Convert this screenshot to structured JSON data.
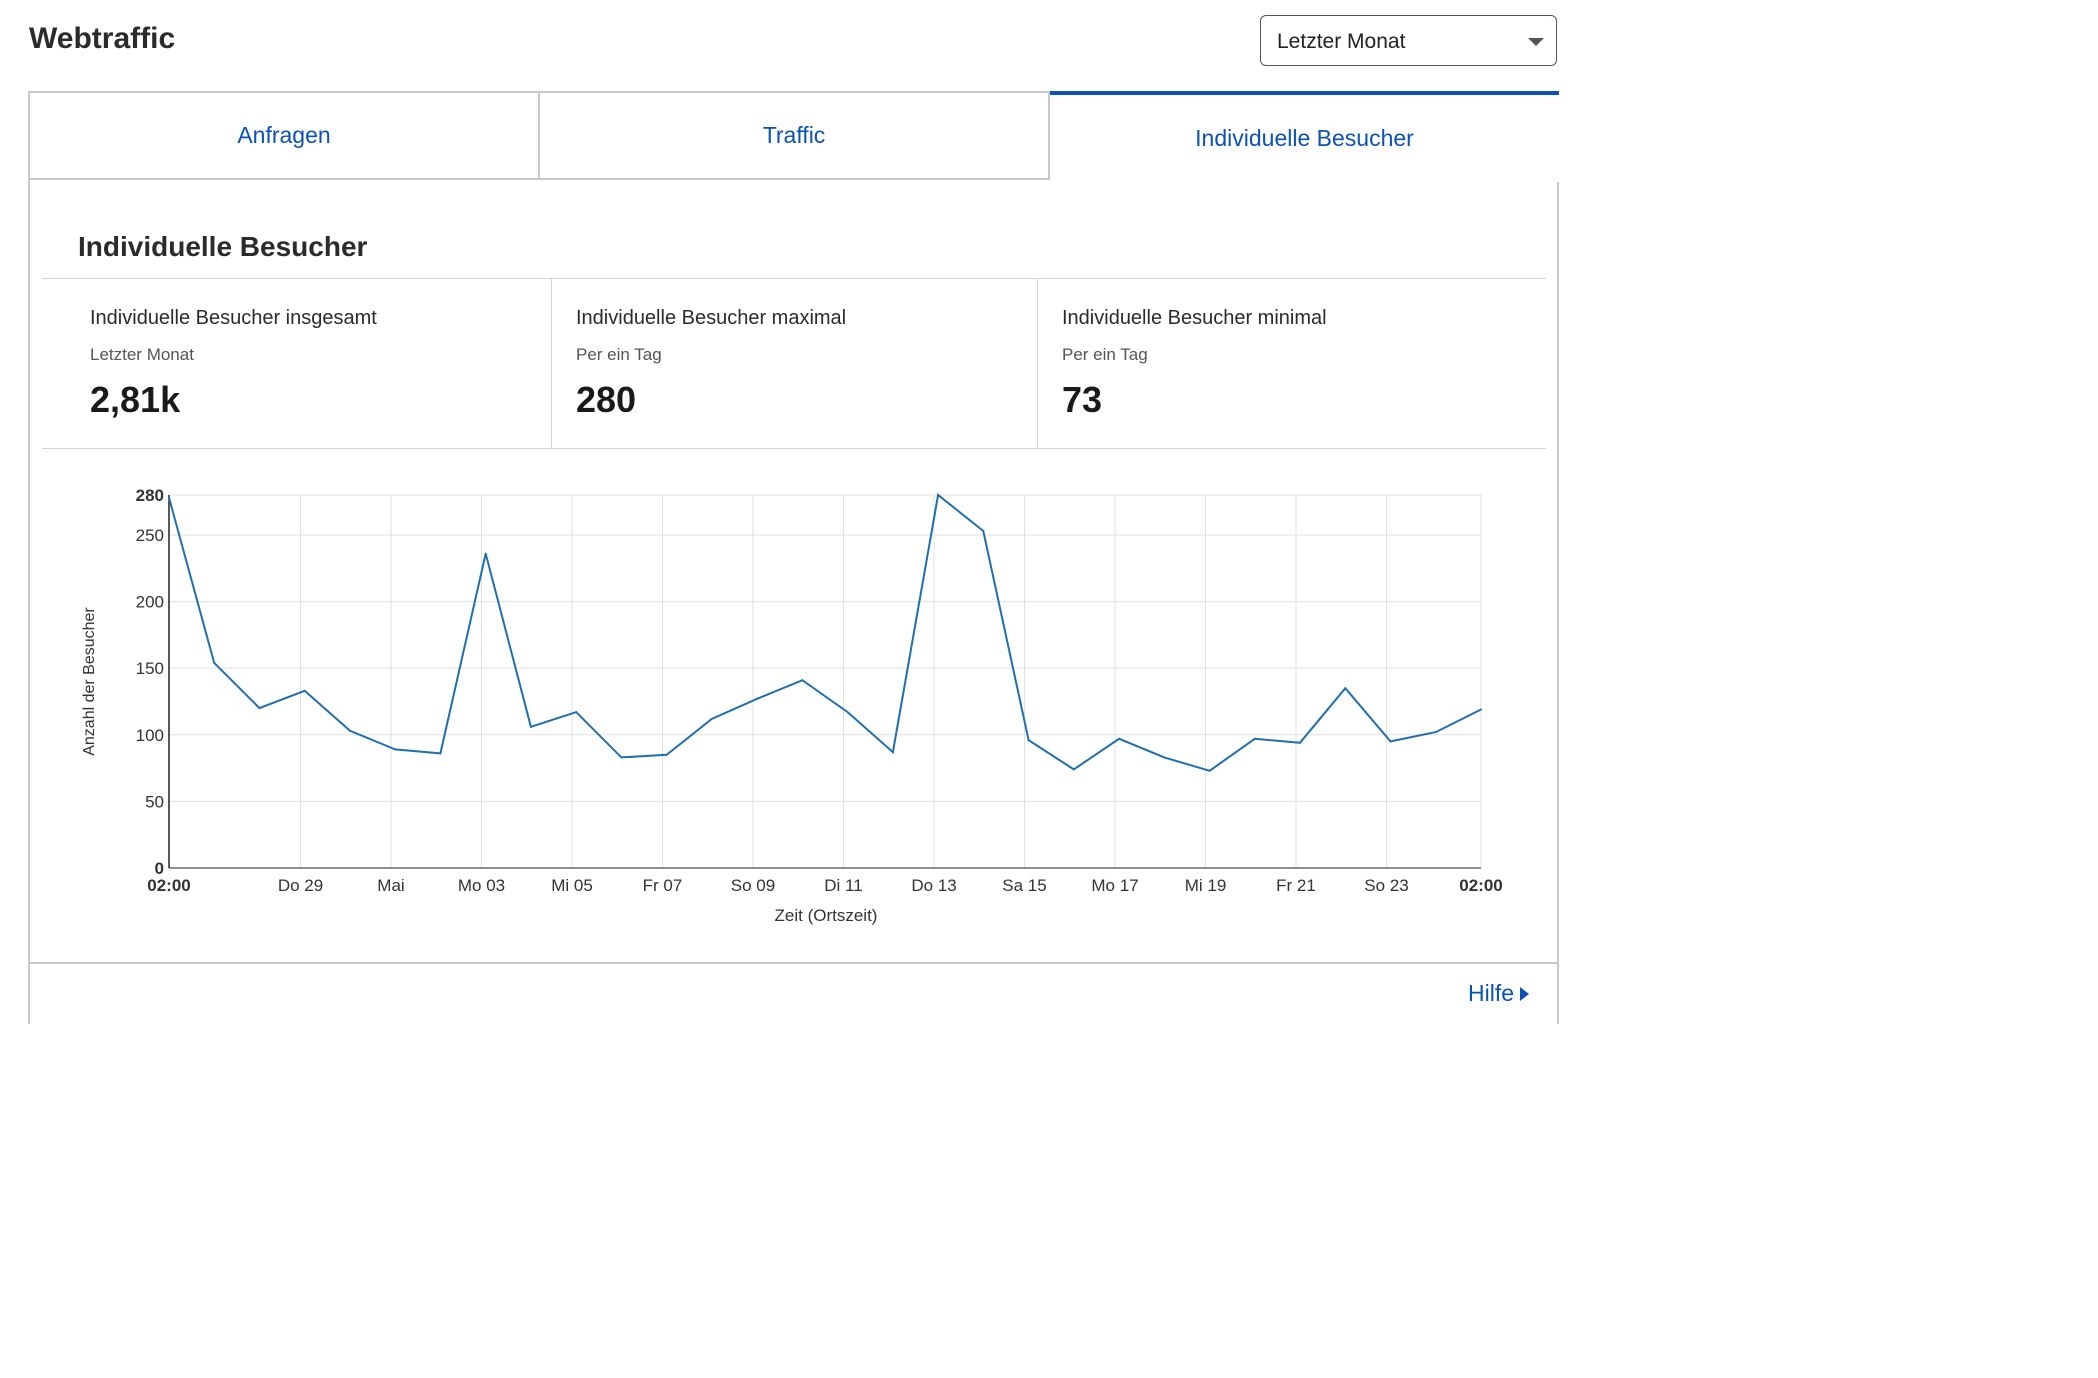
{
  "header": {
    "title": "Webtraffic"
  },
  "range_select": {
    "value": "Letzter Monat"
  },
  "tabs": [
    {
      "label": "Anfragen"
    },
    {
      "label": "Traffic"
    },
    {
      "label": "Individuelle Besucher",
      "active": true
    }
  ],
  "section": {
    "title": "Individuelle Besucher"
  },
  "stats": [
    {
      "label": "Individuelle Besucher insgesamt",
      "sub": "Letzter Monat",
      "value": "2,81k"
    },
    {
      "label": "Individuelle Besucher maximal",
      "sub": "Per ein Tag",
      "value": "280"
    },
    {
      "label": "Individuelle Besucher minimal",
      "sub": "Per ein Tag",
      "value": "73"
    }
  ],
  "chart_data": {
    "type": "line",
    "xlabel": "Zeit (Ortszeit)",
    "ylabel": "Anzahl der Besucher",
    "ylim": [
      0,
      280
    ],
    "y_ticks": [
      0,
      50,
      100,
      150,
      200,
      250,
      280
    ],
    "x_tick_labels": [
      "02:00",
      "Do 29",
      "Mai",
      "Mo 03",
      "Mi 05",
      "Fr 07",
      "So 09",
      "Di 11",
      "Do 13",
      "Sa 15",
      "Mo 17",
      "Mi 19",
      "Fr 21",
      "So 23",
      "02:00"
    ],
    "grid": true,
    "line_color": "#1f6fb0",
    "series": [
      {
        "values": [
          278,
          154,
          120,
          133,
          103,
          89,
          86,
          236,
          106,
          117,
          83,
          85,
          112,
          127,
          141,
          117,
          87,
          280,
          253,
          96,
          74,
          97,
          83,
          73,
          97,
          94,
          135,
          95,
          102,
          119
        ]
      }
    ]
  },
  "help": {
    "label": "Hilfe"
  }
}
